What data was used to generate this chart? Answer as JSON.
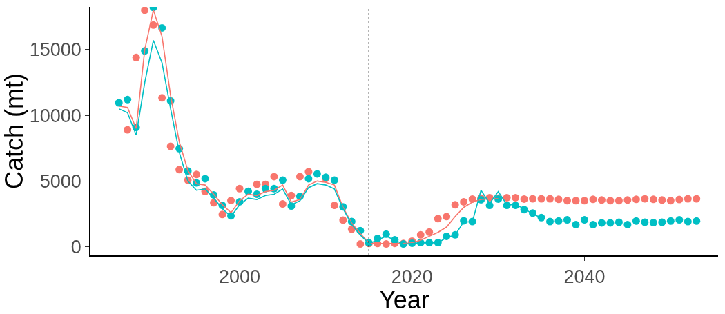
{
  "chart_data": {
    "type": "scatter",
    "xlabel": "Year",
    "ylabel": "Catch (mt)",
    "x": [
      1986,
      1987,
      1988,
      1989,
      1990,
      1991,
      1992,
      1993,
      1994,
      1995,
      1996,
      1997,
      1998,
      1999,
      2000,
      2001,
      2002,
      2003,
      2004,
      2005,
      2006,
      2007,
      2008,
      2009,
      2010,
      2011,
      2012,
      2013,
      2014,
      2015,
      2016,
      2017,
      2018,
      2019,
      2020,
      2021,
      2022,
      2023,
      2024,
      2025,
      2026,
      2027,
      2028,
      2029,
      2030,
      2031,
      2032,
      2033,
      2034,
      2035,
      2036,
      2037,
      2038,
      2039,
      2040,
      2041,
      2042,
      2043,
      2044,
      2045,
      2046,
      2047,
      2048,
      2049,
      2050,
      2051,
      2052,
      2053
    ],
    "xlim": [
      1982.7,
      2055.5
    ],
    "xticks": [
      2000,
      2020,
      2040
    ],
    "ylim": [
      -650,
      18250
    ],
    "yticks": [
      0,
      5000,
      10000,
      15000
    ],
    "grid": false,
    "marker": "circle",
    "ref_lines": [
      {
        "axis": "x",
        "value": 2015,
        "color": "#000000",
        "line_style": "dotted"
      }
    ],
    "series": [
      {
        "color": "#f8766d",
        "values": [
          null,
          8900,
          14400,
          18000,
          16870,
          11330,
          7640,
          5870,
          5070,
          5500,
          4220,
          3350,
          2460,
          3520,
          4430,
          null,
          4750,
          4750,
          5340,
          3260,
          3900,
          5340,
          5710,
          null,
          5200,
          3150,
          2030,
          1340,
          210,
          250,
          250,
          210,
          260,
          250,
          430,
          910,
          1120,
          2140,
          2300,
          3200,
          3420,
          3630,
          3690,
          3740,
          3690,
          3740,
          3740,
          3630,
          3650,
          3650,
          3650,
          3610,
          3510,
          3510,
          3510,
          3610,
          3560,
          3510,
          3510,
          3560,
          3610,
          3650,
          3610,
          3560,
          3510,
          3600,
          3650,
          3650
        ]
      },
      {
        "color": "#00bfc4",
        "values": [
          10950,
          11200,
          9080,
          14900,
          18200,
          16650,
          11100,
          7470,
          5770,
          4860,
          5180,
          3950,
          3150,
          2350,
          3420,
          4220,
          4000,
          4430,
          4430,
          5070,
          3100,
          3840,
          5180,
          5550,
          5290,
          5070,
          3040,
          1920,
          1230,
          300,
          640,
          960,
          530,
          210,
          270,
          320,
          320,
          320,
          800,
          910,
          1980,
          1920,
          3580,
          3150,
          3630,
          3150,
          3150,
          2830,
          2560,
          2220,
          1920,
          1960,
          2050,
          1690,
          2050,
          1690,
          1820,
          1820,
          1870,
          1690,
          1960,
          1870,
          1840,
          1870,
          1960,
          2050,
          1920,
          1960
        ]
      },
      {
        "type": "line",
        "marker": "none",
        "line_style": "solid",
        "color": "#f8766d",
        "x": [
          1986,
          1987,
          1988,
          1989,
          1990,
          1991,
          1992,
          1993,
          1994,
          1995,
          1996,
          1997,
          1998,
          1999,
          2000,
          2001,
          2002,
          2003,
          2004,
          2005,
          2006,
          2007,
          2008,
          2009,
          2010,
          2011,
          2012,
          2013,
          2014,
          2015,
          2016,
          2017,
          2018,
          2019,
          2020,
          2021,
          2022,
          2023,
          2024,
          2025,
          2026,
          2027,
          2028,
          2029,
          2030
        ],
        "values": [
          10700,
          10600,
          9000,
          15000,
          18000,
          16000,
          11500,
          8000,
          5800,
          4800,
          4700,
          4000,
          3200,
          2600,
          3500,
          4000,
          3900,
          4200,
          4300,
          4700,
          3400,
          3600,
          4700,
          5000,
          4900,
          4700,
          3000,
          1800,
          1000,
          300,
          250,
          250,
          250,
          250,
          300,
          500,
          800,
          1100,
          1500,
          2300,
          3000,
          3400,
          3600,
          3650,
          3650
        ]
      },
      {
        "type": "line",
        "marker": "none",
        "line_style": "solid",
        "color": "#00bfc4",
        "x": [
          1986,
          1987,
          1988,
          1989,
          1990,
          1991,
          1992,
          1993,
          1994,
          1995,
          1996,
          1997,
          1998,
          1999,
          2000,
          2001,
          2002,
          2003,
          2004,
          2005,
          2006,
          2007,
          2008,
          2009,
          2010,
          2011,
          2012,
          2013,
          2014,
          2015,
          2016,
          2017,
          2018,
          2019,
          2020,
          2021,
          2022,
          2023,
          2024,
          2025,
          2026,
          2027,
          2028,
          2029,
          2030,
          2031,
          2032,
          2033,
          2034,
          2035
        ],
        "values": [
          10500,
          10200,
          8500,
          12500,
          15700,
          14000,
          10500,
          7200,
          5000,
          4300,
          4400,
          3700,
          2900,
          2300,
          3200,
          3700,
          3600,
          3900,
          4000,
          4400,
          3200,
          3500,
          4500,
          4800,
          4700,
          4400,
          2900,
          1700,
          900,
          250,
          500,
          800,
          500,
          200,
          250,
          300,
          300,
          300,
          700,
          900,
          1900,
          1900,
          4300,
          3300,
          4200,
          3200,
          3200,
          2900,
          2500,
          2200
        ]
      }
    ]
  }
}
